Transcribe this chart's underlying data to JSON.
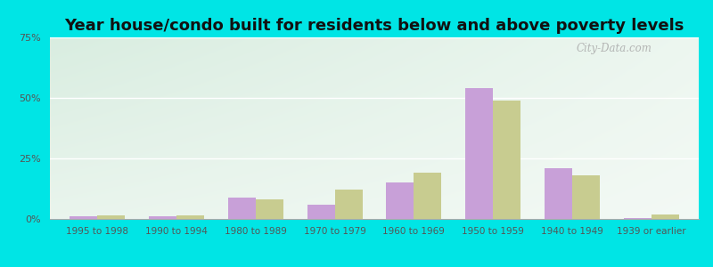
{
  "title": "Year house/condo built for residents below and above poverty levels",
  "categories": [
    "1995 to 1998",
    "1990 to 1994",
    "1980 to 1989",
    "1970 to 1979",
    "1960 to 1969",
    "1950 to 1959",
    "1940 to 1949",
    "1939 or earlier"
  ],
  "below_poverty": [
    1.0,
    1.0,
    9.0,
    6.0,
    15.0,
    54.0,
    21.0,
    0.5
  ],
  "above_poverty": [
    1.5,
    1.5,
    8.0,
    12.0,
    19.0,
    49.0,
    18.0,
    2.0
  ],
  "below_color": "#c8a0d8",
  "above_color": "#c8cc90",
  "ylim": [
    0,
    75
  ],
  "yticks": [
    0,
    25,
    50,
    75
  ],
  "ytick_labels": [
    "0%",
    "25%",
    "50%",
    "75%"
  ],
  "outer_bg": "#00e5e5",
  "bar_width": 0.35,
  "title_fontsize": 13,
  "watermark": "City-Data.com"
}
